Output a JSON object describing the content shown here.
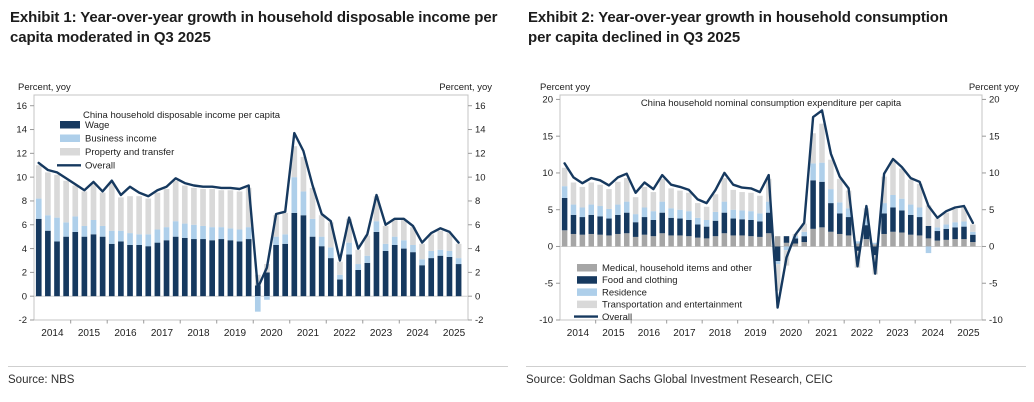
{
  "exhibits": [
    {
      "title": "Exhibit 1: Year-over-year growth in household disposable income per capita moderated in Q3 2025",
      "source": "Source: NBS"
    },
    {
      "title": "Exhibit 2: Year-over-year growth in household consumption per capita declined in Q3 2025",
      "source": "Source: Goldman Sachs Global Investment Research, CEIC"
    }
  ],
  "colors": {
    "navy": "#16395f",
    "light_blue": "#aecfea",
    "light_gray": "#d9d9d9",
    "mid_gray": "#a6a6a6",
    "axis_border": "#c4c4c4",
    "zero_line": "#d4d4d4",
    "tick": "#9a9a9a",
    "text": "#1e1e1e"
  },
  "chart_data": [
    {
      "type": "bar",
      "name": "disposable-income",
      "inner_title": "China household disposable income per capita",
      "axis_label_left": "Percent, yoy",
      "axis_label_right": "Percent, yoy",
      "ylim": [
        -2,
        16.9
      ],
      "yticks": [
        -2,
        0,
        2,
        4,
        6,
        8,
        10,
        12,
        14,
        16
      ],
      "years": [
        "2014",
        "2015",
        "2016",
        "2017",
        "2018",
        "2019",
        "2020",
        "2021",
        "2022",
        "2023",
        "2024",
        "2025"
      ],
      "x": [
        "2014Q1",
        "2014Q2",
        "2014Q3",
        "2014Q4",
        "2015Q1",
        "2015Q2",
        "2015Q3",
        "2015Q4",
        "2016Q1",
        "2016Q2",
        "2016Q3",
        "2016Q4",
        "2017Q1",
        "2017Q2",
        "2017Q3",
        "2017Q4",
        "2018Q1",
        "2018Q2",
        "2018Q3",
        "2018Q4",
        "2019Q1",
        "2019Q2",
        "2019Q3",
        "2019Q4",
        "2020Q1",
        "2020Q2",
        "2020Q3",
        "2020Q4",
        "2021Q1",
        "2021Q2",
        "2021Q3",
        "2021Q4",
        "2022Q1",
        "2022Q2",
        "2022Q3",
        "2022Q4",
        "2023Q1",
        "2023Q2",
        "2023Q3",
        "2023Q4",
        "2024Q1",
        "2024Q2",
        "2024Q3",
        "2024Q4",
        "2025Q1",
        "2025Q2",
        "2025Q3"
      ],
      "bar_series": [
        {
          "name": "Wage",
          "color": "#16395f",
          "values": [
            6.5,
            5.5,
            4.6,
            5.0,
            5.4,
            5.0,
            5.2,
            5.0,
            4.4,
            4.6,
            4.3,
            4.3,
            4.2,
            4.5,
            4.7,
            5.0,
            4.9,
            4.8,
            4.8,
            4.7,
            4.8,
            4.7,
            4.6,
            4.8,
            0.9,
            2.0,
            4.3,
            4.4,
            7.0,
            6.8,
            5.0,
            4.2,
            3.2,
            1.4,
            3.5,
            2.2,
            2.8,
            5.4,
            3.8,
            4.3,
            4.0,
            3.7,
            2.6,
            3.2,
            3.4,
            3.3,
            2.7
          ]
        },
        {
          "name": "Business income",
          "color": "#aecfea",
          "values": [
            1.7,
            1.3,
            2.0,
            1.2,
            1.3,
            0.9,
            1.2,
            0.9,
            1.1,
            0.9,
            1.0,
            0.9,
            1.0,
            1.1,
            1.1,
            1.3,
            1.2,
            1.2,
            1.1,
            1.1,
            1.0,
            1.0,
            1.0,
            1.0,
            -1.3,
            -0.3,
            0.7,
            0.8,
            3.0,
            2.0,
            1.5,
            0.8,
            0.9,
            0.4,
            1.0,
            0.5,
            0.6,
            0.9,
            0.6,
            0.7,
            0.7,
            0.6,
            0.5,
            0.6,
            0.5,
            0.5,
            0.5
          ]
        },
        {
          "name": "Property and transfer",
          "color": "#d9d9d9",
          "values": [
            2.8,
            3.6,
            3.6,
            3.5,
            2.6,
            2.9,
            3.1,
            2.8,
            4.0,
            2.8,
            3.1,
            3.2,
            3.0,
            3.1,
            3.2,
            3.4,
            3.2,
            3.1,
            3.1,
            3.2,
            3.1,
            3.2,
            3.2,
            3.3,
            0.9,
            0.7,
            1.8,
            1.8,
            2.6,
            2.9,
            2.6,
            1.8,
            2.1,
            1.1,
            2.0,
            1.2,
            1.7,
            2.1,
            1.5,
            1.4,
            1.7,
            1.5,
            1.3,
            1.4,
            1.6,
            1.5,
            1.2
          ]
        }
      ],
      "line_series": {
        "name": "Overall",
        "color": "#16395f",
        "values": [
          11.2,
          10.6,
          10.4,
          9.9,
          9.4,
          8.9,
          9.6,
          8.8,
          9.7,
          8.5,
          9.2,
          8.7,
          8.4,
          8.9,
          9.2,
          9.9,
          9.5,
          9.3,
          9.2,
          9.2,
          9.1,
          9.1,
          9.0,
          9.3,
          0.7,
          2.4,
          6.9,
          7.1,
          13.7,
          12.2,
          9.3,
          6.9,
          6.3,
          3.0,
          6.6,
          4.0,
          5.2,
          8.5,
          6.0,
          6.5,
          6.5,
          5.9,
          4.5,
          5.3,
          5.7,
          5.4,
          4.5
        ]
      },
      "legend_position": "top-left"
    },
    {
      "type": "bar",
      "name": "consumption",
      "inner_title": "China household nominal consumption expenditure per capita",
      "axis_label_left": "Percent yoy",
      "axis_label_right": "Percent yoy",
      "ylim": [
        -10,
        20.6
      ],
      "yticks": [
        -10,
        -5,
        0,
        5,
        10,
        15,
        20
      ],
      "years": [
        "2014",
        "2015",
        "2016",
        "2017",
        "2018",
        "2019",
        "2020",
        "2021",
        "2022",
        "2023",
        "2024",
        "2025"
      ],
      "x": [
        "2014Q1",
        "2014Q2",
        "2014Q3",
        "2014Q4",
        "2015Q1",
        "2015Q2",
        "2015Q3",
        "2015Q4",
        "2016Q1",
        "2016Q2",
        "2016Q3",
        "2016Q4",
        "2017Q1",
        "2017Q2",
        "2017Q3",
        "2017Q4",
        "2018Q1",
        "2018Q2",
        "2018Q3",
        "2018Q4",
        "2019Q1",
        "2019Q2",
        "2019Q3",
        "2019Q4",
        "2020Q1",
        "2020Q2",
        "2020Q3",
        "2020Q4",
        "2021Q1",
        "2021Q2",
        "2021Q3",
        "2021Q4",
        "2022Q1",
        "2022Q2",
        "2022Q3",
        "2022Q4",
        "2023Q1",
        "2023Q2",
        "2023Q3",
        "2023Q4",
        "2024Q1",
        "2024Q2",
        "2024Q3",
        "2024Q4",
        "2025Q1",
        "2025Q2",
        "2025Q3"
      ],
      "bar_series": [
        {
          "name": "Medical, household items and other",
          "color": "#a6a6a6",
          "values": [
            2.2,
            1.7,
            1.6,
            1.7,
            1.6,
            1.5,
            1.7,
            1.8,
            1.3,
            1.6,
            1.4,
            1.8,
            1.5,
            1.5,
            1.4,
            1.2,
            1.1,
            1.4,
            1.8,
            1.5,
            1.5,
            1.4,
            1.3,
            1.8,
            1.4,
            0.5,
            0.4,
            0.6,
            2.4,
            2.6,
            2.0,
            1.7,
            1.5,
            0.4,
            1.0,
            0.3,
            1.7,
            2.0,
            1.9,
            1.6,
            1.5,
            1.1,
            0.8,
            0.9,
            1.0,
            1.0,
            0.6
          ]
        },
        {
          "name": "Food and clothing",
          "color": "#16395f",
          "values": [
            4.4,
            2.6,
            2.4,
            2.6,
            2.5,
            2.3,
            2.6,
            2.8,
            2.0,
            2.4,
            2.2,
            2.8,
            2.4,
            2.3,
            2.2,
            1.8,
            1.6,
            2.1,
            2.8,
            2.3,
            2.2,
            2.2,
            2.1,
            2.8,
            -2.0,
            0.9,
            0.7,
            0.8,
            6.6,
            6.2,
            3.9,
            2.8,
            2.5,
            -0.6,
            1.9,
            -1.2,
            2.8,
            3.3,
            3.0,
            2.7,
            2.5,
            1.7,
            1.3,
            1.5,
            1.6,
            1.7,
            1.0
          ]
        },
        {
          "name": "Residence",
          "color": "#aecfea",
          "values": [
            1.6,
            1.4,
            1.3,
            1.4,
            1.4,
            1.3,
            1.4,
            1.5,
            1.1,
            1.3,
            1.2,
            1.5,
            1.3,
            1.2,
            1.2,
            0.9,
            0.9,
            1.2,
            1.5,
            1.2,
            1.2,
            1.2,
            1.1,
            1.5,
            -0.4,
            -0.5,
            0.3,
            0.6,
            2.3,
            2.6,
            1.9,
            1.5,
            1.2,
            0.3,
            0.8,
            0.2,
            1.4,
            1.7,
            1.6,
            1.4,
            1.3,
            -0.9,
            0.5,
            0.6,
            0.7,
            0.7,
            0.4
          ]
        },
        {
          "name": "Transportation and entertainment",
          "color": "#d9d9d9",
          "values": [
            2.5,
            3.0,
            2.8,
            3.0,
            2.9,
            2.7,
            3.1,
            3.2,
            2.3,
            2.8,
            2.6,
            3.1,
            2.7,
            2.6,
            2.5,
            2.0,
            1.8,
            2.4,
            3.2,
            2.7,
            2.5,
            2.5,
            2.4,
            3.1,
            -3.6,
            -2.1,
            0.3,
            1.1,
            4.1,
            5.3,
            4.0,
            3.2,
            2.4,
            -2.3,
            1.5,
            -2.6,
            3.6,
            4.6,
            4.1,
            3.4,
            3.2,
            2.8,
            1.2,
            1.6,
            1.8,
            1.9,
            1.0
          ]
        }
      ],
      "line_series": {
        "name": "Overall",
        "color": "#16395f",
        "values": [
          11.3,
          9.4,
          8.6,
          9.3,
          9.0,
          8.3,
          9.4,
          9.9,
          7.3,
          8.7,
          7.8,
          9.7,
          8.4,
          8.1,
          7.7,
          6.4,
          5.9,
          7.7,
          10.0,
          8.4,
          8.0,
          7.9,
          7.4,
          9.7,
          -8.3,
          -1.5,
          1.6,
          3.2,
          17.6,
          18.5,
          12.6,
          9.5,
          7.9,
          -2.7,
          5.5,
          -3.7,
          9.9,
          11.9,
          10.8,
          9.3,
          8.8,
          5.5,
          3.9,
          4.8,
          5.3,
          5.5,
          3.2
        ]
      },
      "legend_position": "bottom-left"
    }
  ]
}
